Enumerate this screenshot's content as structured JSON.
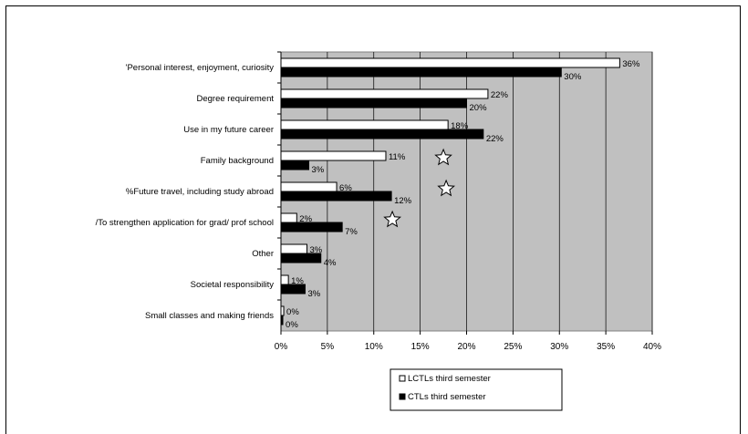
{
  "chart_data": {
    "type": "bar",
    "orientation": "horizontal",
    "categories": [
      "'Personal interest, enjoyment, curiosity",
      "Degree requirement",
      "Use in my future career",
      "Family background",
      "%Future travel, including study abroad",
      "/To strengthen application for grad/ prof school",
      "Other",
      "Societal responsibility",
      "Small classes and making friends"
    ],
    "series": [
      {
        "name": "LCTLs third semester",
        "color": "#ffffff",
        "values": [
          36.5,
          22.3,
          18,
          11.3,
          6,
          1.7,
          2.8,
          0.8,
          0.3
        ],
        "labels": [
          "36%",
          "22%",
          "18%",
          "11%",
          "6%",
          "2%",
          "3%",
          "1%",
          "0%"
        ]
      },
      {
        "name": "CTLs third semester",
        "color": "#000000",
        "values": [
          30.2,
          20,
          21.8,
          3,
          11.9,
          6.6,
          4.3,
          2.6,
          0.2
        ],
        "labels": [
          "30%",
          "20%",
          "22%",
          "3%",
          "12%",
          "7%",
          "4%",
          "3%",
          "0%"
        ]
      }
    ],
    "xlim": [
      0,
      40
    ],
    "x_ticks": [
      "0%",
      "5%",
      "10%",
      "15%",
      "20%",
      "25%",
      "30%",
      "35%",
      "40%"
    ],
    "grid": true,
    "plot_background": "#c0c0c0",
    "legend_position": "bottom-center",
    "stars": [
      {
        "category_index": 3,
        "x": 17.5
      },
      {
        "category_index": 4,
        "x": 17.8
      },
      {
        "category_index": 5,
        "x": 12
      }
    ]
  }
}
